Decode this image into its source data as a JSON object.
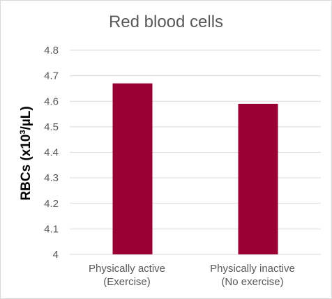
{
  "colors": {
    "bar": "#9b0035",
    "grid": "#d9d9d9",
    "text": "#595959"
  },
  "chart_data": {
    "type": "bar",
    "title": "Red blood cells",
    "ylabel_main": "RBCs (x10",
    "ylabel_sup": "3",
    "ylabel_end": "/µL)",
    "xlabel": "",
    "categories": [
      [
        "Physically active",
        "(Exercise)"
      ],
      [
        "Physically inactive",
        "(No exercise)"
      ]
    ],
    "values": [
      4.67,
      4.59
    ],
    "ylim": [
      4,
      4.8
    ],
    "yticks": [
      "4",
      "4.1",
      "4.2",
      "4.3",
      "4.4",
      "4.5",
      "4.6",
      "4.7",
      "4.8"
    ],
    "grid": true,
    "legend": "none"
  }
}
